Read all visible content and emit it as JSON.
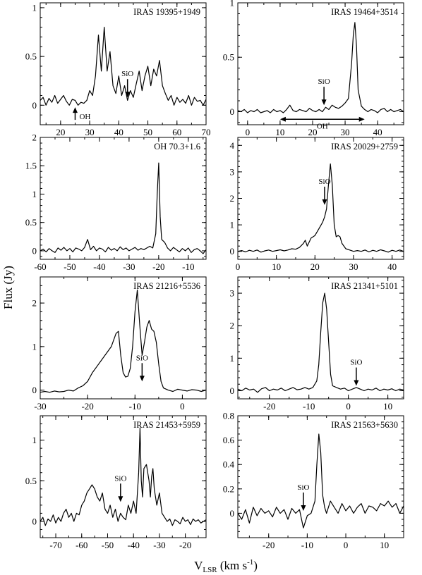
{
  "figure": {
    "ylabel": "Flux (Jy)",
    "xlabel_main": "V",
    "xlabel_sub": "LSR",
    "xlabel_unit": " (km s",
    "xlabel_exp": "-1",
    "xlabel_close": ")"
  },
  "chart_data": [
    {
      "type": "line",
      "title": "IRAS 19395+1949",
      "xlim": [
        13,
        70
      ],
      "ylim": [
        -0.2,
        1.05
      ],
      "xticks": [
        20,
        30,
        40,
        50,
        60,
        70
      ],
      "xminor": 5,
      "yticks": [
        0,
        0.5,
        1
      ],
      "ytick_labels": [
        "0",
        "0.5",
        "1"
      ],
      "yminor": 0.1,
      "annotations": [
        {
          "text": "OH",
          "x": 25,
          "y": -0.02,
          "dir": "up"
        },
        {
          "text": "SiO",
          "x": 43,
          "y": 0.08,
          "dir": "down"
        }
      ],
      "x": [
        13,
        14,
        15,
        16,
        17,
        18,
        19,
        20,
        21,
        22,
        23,
        24,
        25,
        26,
        27,
        28,
        29,
        30,
        31,
        32,
        33,
        34,
        35,
        36,
        37,
        38,
        39,
        40,
        41,
        42,
        43,
        44,
        45,
        46,
        47,
        48,
        49,
        50,
        51,
        52,
        53,
        54,
        55,
        56,
        57,
        58,
        59,
        60,
        61,
        62,
        63,
        64,
        65,
        66,
        67,
        68,
        69,
        70
      ],
      "y": [
        0.05,
        0.08,
        0.0,
        0.07,
        0.03,
        0.1,
        0.02,
        0.06,
        0.1,
        0.04,
        0.0,
        0.06,
        0.05,
        0.0,
        0.03,
        0.02,
        0.05,
        0.15,
        0.1,
        0.3,
        0.72,
        0.35,
        0.8,
        0.35,
        0.55,
        0.2,
        0.12,
        0.3,
        0.1,
        0.2,
        0.05,
        0.15,
        0.08,
        0.22,
        0.35,
        0.15,
        0.3,
        0.4,
        0.2,
        0.37,
        0.3,
        0.46,
        0.2,
        0.12,
        0.05,
        0.1,
        0.0,
        0.08,
        0.03,
        0.06,
        0.02,
        0.1,
        0.0,
        0.08,
        0.04,
        0.05,
        0.0,
        0.06
      ]
    },
    {
      "type": "line",
      "title": "IRAS 19464+3514",
      "xlim": [
        -3,
        48
      ],
      "ylim": [
        -0.12,
        1.0
      ],
      "xticks": [
        0,
        10,
        20,
        30,
        40
      ],
      "xminor": 5,
      "yticks": [
        0,
        0.5,
        1
      ],
      "ytick_labels": [
        "0",
        "0.5",
        "1"
      ],
      "yminor": 0.1,
      "annotations": [
        {
          "text": "SiO",
          "x": 23.5,
          "y": 0.06,
          "dir": "down"
        },
        {
          "text": "OH",
          "x1": 10,
          "x2": 36,
          "y": -0.07,
          "dir": "both"
        }
      ],
      "x": [
        -3,
        -2,
        -1,
        0,
        1,
        2,
        3,
        4,
        5,
        6,
        7,
        8,
        9,
        10,
        11,
        12,
        13,
        14,
        15,
        16,
        17,
        18,
        19,
        20,
        21,
        22,
        23,
        24,
        25,
        26,
        27,
        28,
        29,
        30,
        31,
        32,
        32.5,
        33,
        33.5,
        34,
        35,
        36,
        37,
        38,
        39,
        40,
        41,
        42,
        43,
        44,
        45,
        46,
        47,
        48
      ],
      "y": [
        0.01,
        0.0,
        0.02,
        -0.01,
        0.01,
        0.0,
        0.02,
        -0.01,
        0.0,
        0.01,
        -0.01,
        0.02,
        0.0,
        0.01,
        -0.01,
        0.02,
        0.06,
        0.01,
        0.0,
        0.02,
        0.01,
        0.0,
        0.03,
        0.01,
        0.0,
        0.02,
        0.0,
        0.04,
        0.02,
        0.06,
        0.04,
        0.03,
        0.05,
        0.08,
        0.12,
        0.45,
        0.7,
        0.82,
        0.6,
        0.2,
        0.05,
        0.02,
        0.0,
        0.02,
        0.01,
        -0.01,
        0.02,
        0.03,
        0.0,
        0.02,
        0.0,
        0.01,
        0.02,
        0.0
      ]
    },
    {
      "type": "line",
      "title": "OH 70.3+1.6",
      "xlim": [
        -60,
        -4
      ],
      "ylim": [
        -0.15,
        2.0
      ],
      "xticks": [
        -60,
        -50,
        -40,
        -30,
        -20,
        -10
      ],
      "xminor": 5,
      "yticks": [
        0,
        0.5,
        1,
        1.5,
        2
      ],
      "ytick_labels": [
        "0",
        "0.5",
        "1",
        "1.5",
        "2"
      ],
      "yminor": 0.1,
      "annotations": [],
      "x": [
        -60,
        -59,
        -58,
        -57,
        -56,
        -55,
        -54,
        -53,
        -52,
        -51,
        -50,
        -49,
        -48,
        -47,
        -46,
        -45,
        -44,
        -43,
        -42,
        -41,
        -40,
        -39,
        -38,
        -37,
        -36,
        -35,
        -34,
        -33,
        -32,
        -31,
        -30,
        -29,
        -28,
        -27,
        -26,
        -25,
        -24,
        -23,
        -22,
        -21,
        -20.5,
        -20,
        -19.5,
        -19,
        -18,
        -17,
        -16,
        -15,
        -14,
        -13,
        -12,
        -11,
        -10,
        -9,
        -8,
        -7,
        -6,
        -5,
        -4
      ],
      "y": [
        0.0,
        0.03,
        -0.02,
        0.04,
        0.0,
        -0.03,
        0.05,
        0.01,
        0.06,
        0.0,
        0.04,
        -0.02,
        0.05,
        0.03,
        0.0,
        0.06,
        0.2,
        0.02,
        0.08,
        0.0,
        0.05,
        0.03,
        -0.02,
        0.06,
        0.01,
        0.04,
        0.0,
        0.07,
        0.02,
        0.05,
        0.0,
        0.03,
        0.06,
        0.01,
        0.04,
        0.02,
        0.05,
        0.08,
        0.05,
        0.3,
        1.0,
        1.55,
        0.6,
        0.2,
        0.15,
        0.05,
        0.0,
        0.06,
        0.02,
        -0.02,
        0.04,
        0.0,
        0.05,
        -0.03,
        0.02,
        0.04,
        0.0,
        -0.05,
        0.02
      ]
    },
    {
      "type": "line",
      "title": "IRAS 20029+2759",
      "xlim": [
        0,
        43
      ],
      "ylim": [
        -0.3,
        4.3
      ],
      "xticks": [
        0,
        10,
        20,
        30,
        40
      ],
      "xminor": 5,
      "yticks": [
        0,
        1,
        2,
        3,
        4
      ],
      "ytick_labels": [
        "0",
        "1",
        "2",
        "3",
        "4"
      ],
      "yminor": 0.2,
      "annotations": [
        {
          "text": "SiO",
          "x": 22.5,
          "y": 1.75,
          "dir": "down"
        }
      ],
      "x": [
        0,
        1,
        2,
        3,
        4,
        5,
        6,
        7,
        8,
        9,
        10,
        11,
        12,
        13,
        14,
        15,
        16,
        17,
        17.5,
        18,
        19,
        20,
        21,
        22,
        22.5,
        23,
        23.5,
        24,
        24.5,
        25,
        25.5,
        26,
        26.5,
        27,
        28,
        29,
        30,
        31,
        32,
        33,
        34,
        35,
        36,
        37,
        38,
        39,
        40,
        41,
        42,
        43
      ],
      "y": [
        0.0,
        0.03,
        -0.02,
        0.04,
        0.0,
        0.05,
        -0.03,
        0.02,
        0.05,
        0.0,
        0.03,
        0.06,
        0.02,
        0.05,
        0.1,
        0.08,
        0.15,
        0.3,
        0.42,
        0.2,
        0.5,
        0.6,
        0.85,
        1.1,
        1.3,
        1.6,
        2.5,
        3.3,
        2.5,
        1.0,
        0.55,
        0.6,
        0.55,
        0.3,
        0.1,
        0.05,
        0.0,
        0.03,
        0.0,
        0.05,
        -0.02,
        0.04,
        0.0,
        0.06,
        0.02,
        -0.03,
        0.04,
        0.0,
        0.05,
        0.0
      ]
    },
    {
      "type": "line",
      "title": "IRAS 21216+5536",
      "xlim": [
        -30,
        5
      ],
      "ylim": [
        -0.2,
        2.6
      ],
      "xticks": [
        -30,
        -20,
        -10,
        0
      ],
      "xminor": 5,
      "yticks": [
        0,
        1,
        2
      ],
      "ytick_labels": [
        "0",
        "1",
        "2"
      ],
      "yminor": 0.2,
      "annotations": [
        {
          "text": "SiO",
          "x": -8.5,
          "y": 0.2,
          "dir": "down"
        }
      ],
      "x": [
        -30,
        -29,
        -28,
        -27,
        -26,
        -25,
        -24,
        -23,
        -22,
        -21,
        -20,
        -19,
        -18,
        -17,
        -16,
        -15,
        -14,
        -13.5,
        -13,
        -12.5,
        -12,
        -11.5,
        -11,
        -10.5,
        -10,
        -9.5,
        -9,
        -8.5,
        -8,
        -7.5,
        -7,
        -6.5,
        -6,
        -5.5,
        -5,
        -4.5,
        -4,
        -3,
        -2,
        -1,
        0,
        1,
        2,
        3,
        4,
        5
      ],
      "y": [
        -0.05,
        -0.03,
        -0.05,
        -0.02,
        -0.04,
        -0.03,
        0.0,
        -0.02,
        0.05,
        0.1,
        0.2,
        0.4,
        0.55,
        0.7,
        0.85,
        1.0,
        1.3,
        1.35,
        0.8,
        0.4,
        0.3,
        0.32,
        0.5,
        1.0,
        1.8,
        2.3,
        1.5,
        0.8,
        1.1,
        1.45,
        1.6,
        1.4,
        1.35,
        1.1,
        0.6,
        0.2,
        0.05,
        0.0,
        -0.03,
        0.02,
        0.0,
        -0.02,
        0.01,
        0.0,
        -0.03,
        0.0
      ]
    },
    {
      "type": "line",
      "title": "IRAS 21341+5101",
      "xlim": [
        -28,
        14
      ],
      "ylim": [
        -0.25,
        3.5
      ],
      "xticks": [
        -20,
        -10,
        0,
        10
      ],
      "xminor": 5,
      "yticks": [
        0,
        1,
        2,
        3
      ],
      "ytick_labels": [
        "0",
        "1",
        "2",
        "3"
      ],
      "yminor": 0.2,
      "annotations": [
        {
          "text": "SiO",
          "x": 2,
          "y": 0.15,
          "dir": "down"
        }
      ],
      "x": [
        -28,
        -27,
        -26,
        -25,
        -24,
        -23,
        -22,
        -21,
        -20,
        -19,
        -18,
        -17,
        -16,
        -15,
        -14,
        -13,
        -12,
        -11,
        -10,
        -9,
        -8,
        -7.5,
        -7,
        -6.5,
        -6,
        -5.5,
        -5,
        -4.5,
        -4,
        -3,
        -2,
        -1,
        0,
        1,
        2,
        3,
        4,
        5,
        6,
        7,
        8,
        9,
        10,
        11,
        12,
        13,
        14
      ],
      "y": [
        0.05,
        0.0,
        0.08,
        0.02,
        0.05,
        -0.05,
        0.06,
        0.1,
        0.0,
        0.05,
        0.02,
        0.08,
        0.0,
        0.05,
        0.1,
        0.03,
        0.05,
        0.1,
        0.05,
        0.1,
        0.3,
        0.8,
        1.8,
        2.7,
        3.0,
        2.5,
        1.5,
        0.5,
        0.15,
        0.1,
        0.05,
        0.08,
        0.0,
        0.05,
        0.1,
        0.05,
        0.0,
        0.05,
        0.02,
        0.08,
        0.0,
        0.05,
        0.02,
        0.06,
        0.0,
        0.05,
        0.02
      ]
    },
    {
      "type": "line",
      "title": "IRAS 21453+5959",
      "xlim": [
        -76,
        -12
      ],
      "ylim": [
        -0.2,
        1.3
      ],
      "xticks": [
        -70,
        -60,
        -50,
        -40,
        -30,
        -20
      ],
      "xminor": 5,
      "yticks": [
        0,
        0.5,
        1
      ],
      "ytick_labels": [
        "0",
        "0.5",
        "1"
      ],
      "yminor": 0.1,
      "annotations": [
        {
          "text": "SiO",
          "x": -45,
          "y": 0.24,
          "dir": "down"
        }
      ],
      "x": [
        -76,
        -75,
        -74,
        -73,
        -72,
        -71,
        -70,
        -69,
        -68,
        -67,
        -66,
        -65,
        -64,
        -63,
        -62,
        -61,
        -60,
        -59,
        -58,
        -57,
        -56,
        -55,
        -54,
        -53,
        -52,
        -51,
        -50,
        -49,
        -48,
        -47,
        -46,
        -45,
        -44,
        -43,
        -42,
        -41,
        -40,
        -39,
        -38,
        -37.5,
        -37,
        -36.5,
        -36,
        -35,
        -34,
        -33.5,
        -33,
        -32.5,
        -32,
        -31,
        -30,
        -29,
        -28,
        -27,
        -26,
        -25,
        -24,
        -23,
        -22,
        -21,
        -20,
        -19,
        -18,
        -17,
        -16,
        -15,
        -14,
        -13,
        -12
      ],
      "y": [
        0.0,
        0.05,
        -0.05,
        0.03,
        0.0,
        0.08,
        -0.02,
        0.05,
        0.0,
        0.1,
        0.15,
        0.05,
        0.1,
        0.0,
        0.1,
        0.08,
        0.2,
        0.25,
        0.35,
        0.4,
        0.45,
        0.4,
        0.3,
        0.25,
        0.35,
        0.15,
        0.1,
        0.2,
        0.05,
        0.15,
        0.0,
        0.1,
        0.05,
        0.02,
        0.2,
        0.1,
        0.25,
        0.1,
        0.6,
        1.15,
        0.5,
        0.3,
        0.65,
        0.7,
        0.5,
        0.3,
        0.55,
        0.65,
        0.4,
        0.2,
        0.35,
        0.1,
        0.05,
        0.0,
        0.03,
        -0.05,
        0.02,
        0.0,
        -0.03,
        0.05,
        0.0,
        0.02,
        -0.04,
        0.03,
        0.0,
        0.02,
        -0.02,
        0.0,
        0.02
      ]
    },
    {
      "type": "line",
      "title": "IRAS 21563+5630",
      "xlim": [
        -28,
        15
      ],
      "ylim": [
        -0.2,
        0.8
      ],
      "xticks": [
        -20,
        -10,
        0,
        10
      ],
      "xminor": 5,
      "yticks": [
        -0.2,
        0,
        0.2,
        0.4,
        0.6,
        0.8
      ],
      "ytick_labels": [
        "",
        "0",
        "0.2",
        "0.4",
        "0.6",
        "0.8"
      ],
      "yminor": 0.05,
      "annotations": [
        {
          "text": "SiO",
          "x": -11,
          "y": 0.02,
          "dir": "down"
        }
      ],
      "x": [
        -28,
        -27,
        -26,
        -25,
        -24,
        -23,
        -22,
        -21,
        -20,
        -19,
        -18,
        -17,
        -16,
        -15,
        -14,
        -13,
        -12,
        -11,
        -10,
        -9,
        -8,
        -7.5,
        -7,
        -6.5,
        -6,
        -5.5,
        -5,
        -4,
        -3,
        -2,
        -1,
        0,
        1,
        2,
        3,
        4,
        5,
        6,
        7,
        8,
        9,
        10,
        11,
        12,
        13,
        14,
        15
      ],
      "y": [
        0.0,
        -0.05,
        0.03,
        -0.08,
        0.05,
        -0.02,
        0.04,
        0.0,
        0.02,
        -0.03,
        0.05,
        0.0,
        0.03,
        -0.05,
        0.04,
        0.0,
        0.03,
        -0.12,
        -0.02,
        0.0,
        0.1,
        0.4,
        0.65,
        0.5,
        0.15,
        0.05,
        0.0,
        0.1,
        0.05,
        0.0,
        0.08,
        0.02,
        0.06,
        0.0,
        0.05,
        0.08,
        0.0,
        0.06,
        0.05,
        0.02,
        0.08,
        0.06,
        0.1,
        0.05,
        0.08,
        0.0,
        0.06
      ]
    }
  ]
}
